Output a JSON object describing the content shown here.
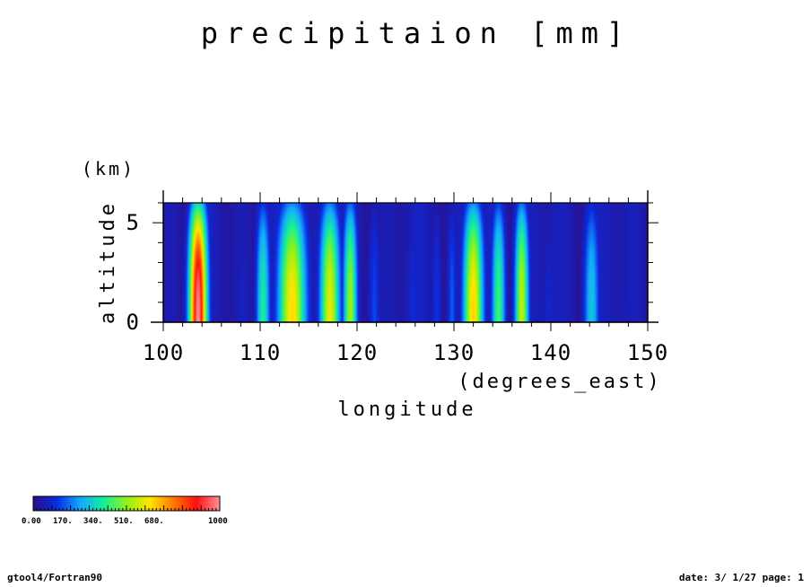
{
  "chart_data": {
    "type": "heatmap",
    "title": "precipitaion [mm]",
    "xlabel": "longitude",
    "xunits": "(degrees_east)",
    "ylabel": "altitude",
    "yunits": "(km)",
    "xlim": [
      100,
      150
    ],
    "ylim": [
      0,
      6
    ],
    "x_ticks": [
      100,
      110,
      120,
      130,
      140,
      150
    ],
    "y_ticks": [
      0,
      5
    ],
    "value_range": [
      0,
      1000
    ],
    "bands": [
      {
        "lon": 103.6,
        "width": 0.9,
        "peak": 1000
      },
      {
        "lon": 110.3,
        "width": 0.7,
        "peak": 380
      },
      {
        "lon": 113.3,
        "width": 1.4,
        "peak": 640
      },
      {
        "lon": 117.2,
        "width": 1.0,
        "peak": 600
      },
      {
        "lon": 119.3,
        "width": 0.7,
        "peak": 520
      },
      {
        "lon": 132.0,
        "width": 1.0,
        "peak": 650
      },
      {
        "lon": 134.6,
        "width": 0.7,
        "peak": 420
      },
      {
        "lon": 137.0,
        "width": 0.7,
        "peak": 560
      },
      {
        "lon": 144.2,
        "width": 0.8,
        "peak": 300
      },
      {
        "lon": 121.8,
        "width": 0.6,
        "peak": 150
      },
      {
        "lon": 125.8,
        "width": 0.8,
        "peak": 110
      },
      {
        "lon": 128.2,
        "width": 0.5,
        "peak": 130
      },
      {
        "lon": 129.8,
        "width": 0.5,
        "peak": 170
      },
      {
        "lon": 139.8,
        "width": 1.0,
        "peak": 90
      },
      {
        "lon": 108.2,
        "width": 0.9,
        "peak": 80
      },
      {
        "lon": 147.5,
        "width": 1.5,
        "peak": 60
      }
    ],
    "colorbar": {
      "labels": [
        "0.00",
        "170.",
        "340.",
        "510.",
        "680.",
        "1000"
      ],
      "colors": [
        "#2a0f8a",
        "#0b2ce0",
        "#14a8ff",
        "#12ef9a",
        "#8ff21a",
        "#ffe600",
        "#ff7a00",
        "#ff1010",
        "#ff9090"
      ]
    }
  },
  "footer": {
    "left": "gtool4/Fortran90",
    "right": "date: 3/ 1/27 page: 1"
  }
}
